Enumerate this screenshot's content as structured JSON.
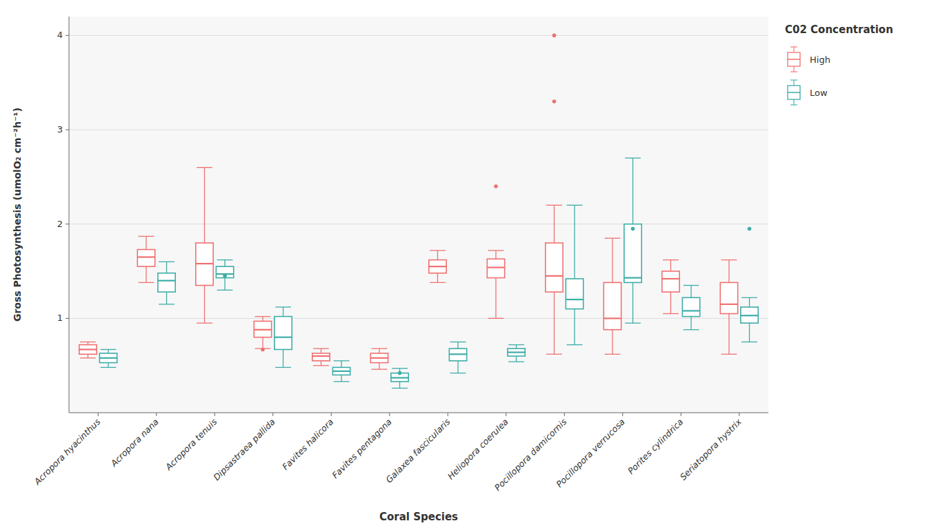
{
  "chart_data": {
    "type": "box",
    "xlabel": "Coral Species",
    "ylabel": "Gross Photosynthesis (umolO₂ cm⁻²h⁻¹)",
    "legend_title": "C02 Concentration",
    "categories": [
      "Acropora hyacinthus",
      "Acropora nana",
      "Acropora tenuis",
      "Dipsastraea pallida",
      "Favites halicora",
      "Favites pentagona",
      "Galaxea fascicularis",
      "Heliopora coerulea",
      "Pocillopora damicornis",
      "Pocillopora verrucosa",
      "Porites cylindrica",
      "Seriatopora hystrix"
    ],
    "series": [
      {
        "name": "High",
        "color": "#F07070",
        "values": [
          {
            "q1": 0.62,
            "median": 0.67,
            "q3": 0.72,
            "whislo": 0.58,
            "whishi": 0.75,
            "fliers": []
          },
          {
            "q1": 1.55,
            "median": 1.65,
            "q3": 1.73,
            "whislo": 1.38,
            "whishi": 1.87,
            "fliers": []
          },
          {
            "q1": 1.35,
            "median": 1.58,
            "q3": 1.8,
            "whislo": 0.95,
            "whishi": 2.6,
            "fliers": []
          },
          {
            "q1": 0.8,
            "median": 0.88,
            "q3": 0.97,
            "whislo": 0.68,
            "whishi": 1.02,
            "fliers": [
              0.67
            ]
          },
          {
            "q1": 0.55,
            "median": 0.6,
            "q3": 0.63,
            "whislo": 0.5,
            "whishi": 0.68,
            "fliers": []
          },
          {
            "q1": 0.53,
            "median": 0.58,
            "q3": 0.63,
            "whislo": 0.46,
            "whishi": 0.68,
            "fliers": []
          },
          {
            "q1": 1.48,
            "median": 1.55,
            "q3": 1.62,
            "whislo": 1.38,
            "whishi": 1.72,
            "fliers": []
          },
          {
            "q1": 1.43,
            "median": 1.54,
            "q3": 1.63,
            "whislo": 1.0,
            "whishi": 1.72,
            "fliers": [
              2.4
            ]
          },
          {
            "q1": 1.28,
            "median": 1.45,
            "q3": 1.8,
            "whislo": 0.62,
            "whishi": 2.2,
            "fliers": [
              3.3,
              4.0
            ]
          },
          {
            "q1": 0.88,
            "median": 1.0,
            "q3": 1.38,
            "whislo": 0.62,
            "whishi": 1.85,
            "fliers": []
          },
          {
            "q1": 1.28,
            "median": 1.42,
            "q3": 1.5,
            "whislo": 1.05,
            "whishi": 1.62,
            "fliers": []
          },
          {
            "q1": 1.05,
            "median": 1.15,
            "q3": 1.38,
            "whislo": 0.62,
            "whishi": 1.62,
            "fliers": []
          }
        ]
      },
      {
        "name": "Low",
        "color": "#3DADA8",
        "values": [
          {
            "q1": 0.53,
            "median": 0.58,
            "q3": 0.63,
            "whislo": 0.48,
            "whishi": 0.67,
            "fliers": []
          },
          {
            "q1": 1.28,
            "median": 1.4,
            "q3": 1.48,
            "whislo": 1.15,
            "whishi": 1.6,
            "fliers": []
          },
          {
            "q1": 1.43,
            "median": 1.47,
            "q3": 1.55,
            "whislo": 1.3,
            "whishi": 1.62,
            "fliers": [
              1.45
            ]
          },
          {
            "q1": 0.67,
            "median": 0.8,
            "q3": 1.02,
            "whislo": 0.48,
            "whishi": 1.12,
            "fliers": []
          },
          {
            "q1": 0.4,
            "median": 0.44,
            "q3": 0.48,
            "whislo": 0.33,
            "whishi": 0.55,
            "fliers": []
          },
          {
            "q1": 0.33,
            "median": 0.37,
            "q3": 0.42,
            "whislo": 0.26,
            "whishi": 0.47,
            "fliers": [
              0.42
            ]
          },
          {
            "q1": 0.55,
            "median": 0.62,
            "q3": 0.68,
            "whislo": 0.42,
            "whishi": 0.75,
            "fliers": []
          },
          {
            "q1": 0.6,
            "median": 0.64,
            "q3": 0.68,
            "whislo": 0.54,
            "whishi": 0.72,
            "fliers": []
          },
          {
            "q1": 1.1,
            "median": 1.2,
            "q3": 1.42,
            "whislo": 0.72,
            "whishi": 2.2,
            "fliers": []
          },
          {
            "q1": 1.38,
            "median": 1.43,
            "q3": 2.0,
            "whislo": 0.95,
            "whishi": 2.7,
            "fliers": [
              1.95
            ]
          },
          {
            "q1": 1.02,
            "median": 1.08,
            "q3": 1.22,
            "whislo": 0.88,
            "whishi": 1.35,
            "fliers": []
          },
          {
            "q1": 0.95,
            "median": 1.03,
            "q3": 1.12,
            "whislo": 0.75,
            "whishi": 1.22,
            "fliers": [
              1.95
            ]
          }
        ]
      }
    ],
    "ylim": [
      0,
      4.2
    ],
    "yticks": [
      1,
      2,
      3,
      4
    ],
    "grid": true,
    "legend": "right"
  }
}
